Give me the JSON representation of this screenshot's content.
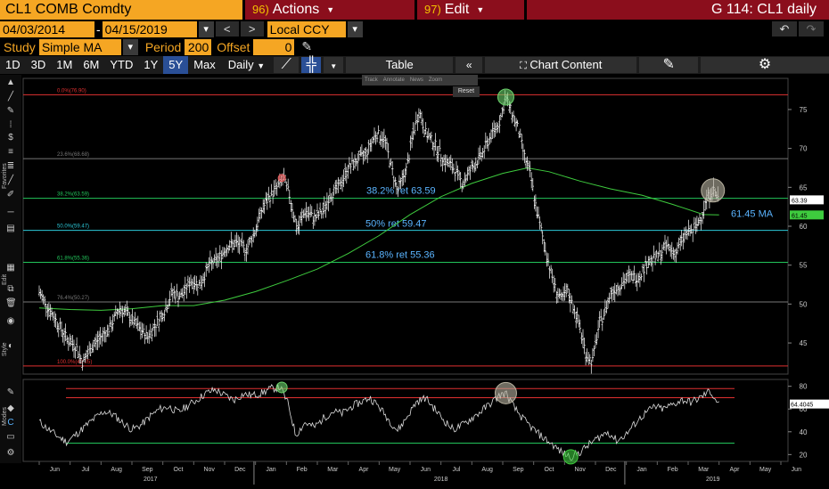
{
  "header": {
    "ticker": "CL1 COMB Comdty",
    "actions": {
      "num": "96)",
      "label": "Actions"
    },
    "edit": {
      "num": "97)",
      "label": "Edit"
    },
    "window_title": "G 114: CL1 daily"
  },
  "range": {
    "start": "04/03/2014",
    "dash": "-",
    "end": "04/15/2019",
    "currency": "Local CCY",
    "prev": "<",
    "next": ">"
  },
  "study": {
    "label": "Study",
    "value": "Simple MA",
    "period_label": "Period",
    "period": "200",
    "offset_label": "Offset",
    "offset": "0"
  },
  "toolbar": {
    "periods": [
      "1D",
      "3D",
      "1M",
      "6M",
      "YTD",
      "1Y",
      "5Y",
      "Max"
    ],
    "selected_period": "5Y",
    "frequency": "Daily",
    "table": "Table",
    "chart_content": "Chart Content"
  },
  "floating_tools": {
    "track": "Track",
    "annotate": "Annotate",
    "news": "News",
    "zoom": "Zoom",
    "reset": "Reset"
  },
  "strip_labels": {
    "favorites": "Favorites",
    "edit": "Edit",
    "style": "Style",
    "modes": "Modes"
  },
  "colors": {
    "orange": "#f5a623",
    "maroon": "#8b0e1c",
    "selected": "#2a4f96",
    "price": "#ffffff",
    "ma": "#3ecb3e",
    "fib_top": "#e03030",
    "fib_mid": "#22c45a",
    "fib_grey": "#777777",
    "fib_cyan": "#2bc8d8",
    "annotation": "#5ab4ff",
    "osc_red": "#e03030",
    "osc_green": "#22c45a"
  },
  "chart_data": {
    "type": "line",
    "x_months": [
      "Jun",
      "Jul",
      "Aug",
      "Sep",
      "Oct",
      "Nov",
      "Dec",
      "Jan",
      "Feb",
      "Mar",
      "Apr",
      "May",
      "Jun",
      "Jul",
      "Aug",
      "Sep",
      "Oct",
      "Nov",
      "Dec",
      "Jan",
      "Feb",
      "Mar",
      "Apr",
      "May",
      "Jun"
    ],
    "x_years": [
      "2017",
      "2018",
      "2019"
    ],
    "ylim": [
      41,
      79
    ],
    "y_ticks": [
      45,
      50,
      55,
      60,
      65,
      70,
      75
    ],
    "oscillator_ticks": [
      20,
      40,
      60,
      80
    ],
    "oscillator_ylim": [
      14,
      86
    ],
    "current_price": "63.39",
    "current_ma": "61.45",
    "current_osc": "64.4045",
    "fib_levels": [
      {
        "label": "0.0%(76.90)",
        "value": 76.9,
        "color": "#e03030"
      },
      {
        "label": "23.6%(68.68)",
        "value": 68.68,
        "color": "#777777"
      },
      {
        "label": "38.2%(63.59)",
        "value": 63.59,
        "color": "#22c45a"
      },
      {
        "label": "50.0%(59.47)",
        "value": 59.47,
        "color": "#2bc8d8"
      },
      {
        "label": "61.8%(55.36)",
        "value": 55.36,
        "color": "#22c45a"
      },
      {
        "label": "76.4%(50.27)",
        "value": 50.27,
        "color": "#777777"
      },
      {
        "label": "100.0%(42.05)",
        "value": 42.05,
        "color": "#e03030"
      }
    ],
    "annotations": [
      {
        "text": "38.2% ret 63.59"
      },
      {
        "text": "50% ret 59.47"
      },
      {
        "text": "61.8% ret 55.36"
      },
      {
        "text": "61.45 MA"
      }
    ],
    "price_series": {
      "name": "",
      "values": [
        [
          0,
          51.5
        ],
        [
          0.3,
          49.5
        ],
        [
          0.6,
          47.5
        ],
        [
          0.9,
          45.5
        ],
        [
          1.2,
          44.5
        ],
        [
          1.4,
          42.5
        ],
        [
          1.7,
          44.5
        ],
        [
          2.0,
          45.8
        ],
        [
          2.3,
          47.0
        ],
        [
          2.6,
          49.5
        ],
        [
          2.9,
          48.5
        ],
        [
          3.2,
          47.0
        ],
        [
          3.5,
          45.8
        ],
        [
          3.8,
          47.5
        ],
        [
          4.1,
          49.5
        ],
        [
          4.3,
          51.5
        ],
        [
          4.6,
          51.0
        ],
        [
          4.9,
          53.0
        ],
        [
          5.2,
          52.5
        ],
        [
          5.5,
          55.0
        ],
        [
          5.8,
          55.8
        ],
        [
          6.1,
          57.5
        ],
        [
          6.4,
          57.8
        ],
        [
          6.7,
          57.0
        ],
        [
          7.0,
          59.5
        ],
        [
          7.2,
          62.0
        ],
        [
          7.4,
          63.5
        ],
        [
          7.7,
          65.0
        ],
        [
          7.9,
          66.2
        ],
        [
          8.1,
          64.0
        ],
        [
          8.35,
          59.5
        ],
        [
          8.6,
          62.0
        ],
        [
          8.9,
          61.0
        ],
        [
          9.2,
          62.0
        ],
        [
          9.4,
          64.0
        ],
        [
          9.7,
          65.0
        ],
        [
          10.0,
          67.5
        ],
        [
          10.3,
          68.5
        ],
        [
          10.6,
          69.5
        ],
        [
          10.9,
          72.0
        ],
        [
          11.2,
          71.0
        ],
        [
          11.4,
          67.5
        ],
        [
          11.6,
          64.5
        ],
        [
          11.9,
          67.5
        ],
        [
          12.1,
          72.0
        ],
        [
          12.3,
          74.8
        ],
        [
          12.5,
          72.0
        ],
        [
          12.8,
          70.5
        ],
        [
          13.1,
          68.5
        ],
        [
          13.4,
          67.5
        ],
        [
          13.7,
          65.5
        ],
        [
          14.0,
          67.5
        ],
        [
          14.3,
          69.0
        ],
        [
          14.6,
          71.5
        ],
        [
          14.9,
          73.5
        ],
        [
          15.1,
          76.5
        ],
        [
          15.3,
          74.5
        ],
        [
          15.5,
          72.5
        ],
        [
          15.7,
          69.0
        ],
        [
          15.9,
          66.5
        ],
        [
          16.1,
          62.0
        ],
        [
          16.3,
          58.5
        ],
        [
          16.5,
          55.0
        ],
        [
          16.7,
          52.0
        ],
        [
          16.9,
          50.5
        ],
        [
          17.1,
          51.5
        ],
        [
          17.3,
          49.5
        ],
        [
          17.5,
          47.0
        ],
        [
          17.7,
          43.5
        ],
        [
          17.9,
          42.5
        ],
        [
          18.1,
          47.0
        ],
        [
          18.3,
          49.0
        ],
        [
          18.5,
          51.5
        ],
        [
          18.8,
          52.5
        ],
        [
          19.1,
          53.5
        ],
        [
          19.4,
          53.5
        ],
        [
          19.7,
          55.5
        ],
        [
          20.0,
          56.0
        ],
        [
          20.3,
          57.5
        ],
        [
          20.6,
          56.5
        ],
        [
          20.9,
          59.0
        ],
        [
          21.2,
          59.5
        ],
        [
          21.4,
          61.0
        ],
        [
          21.6,
          63.5
        ],
        [
          21.8,
          64.8
        ],
        [
          22.0,
          63.4
        ]
      ]
    },
    "ma_series": {
      "name": "",
      "values": [
        [
          0,
          49.5
        ],
        [
          1,
          49.3
        ],
        [
          2,
          49.2
        ],
        [
          3,
          49.4
        ],
        [
          4,
          49.8
        ],
        [
          5,
          49.8
        ],
        [
          6,
          50.5
        ],
        [
          7,
          51.6
        ],
        [
          8,
          53.0
        ],
        [
          9,
          54.5
        ],
        [
          10,
          56.5
        ],
        [
          11,
          58.8
        ],
        [
          12,
          61.5
        ],
        [
          13,
          63.8
        ],
        [
          14,
          65.5
        ],
        [
          15,
          66.8
        ],
        [
          15.8,
          67.5
        ],
        [
          16.5,
          67.0
        ],
        [
          17.5,
          65.8
        ],
        [
          18.5,
          64.8
        ],
        [
          19.5,
          64.0
        ],
        [
          20.5,
          62.8
        ],
        [
          21.5,
          61.5
        ],
        [
          22.0,
          61.45
        ]
      ]
    },
    "osc_series": {
      "name": "",
      "values": [
        [
          0,
          49
        ],
        [
          0.3,
          42
        ],
        [
          0.6,
          36
        ],
        [
          0.9,
          31
        ],
        [
          1.2,
          38
        ],
        [
          1.5,
          45
        ],
        [
          1.8,
          52
        ],
        [
          2.1,
          58
        ],
        [
          2.4,
          55
        ],
        [
          2.7,
          48
        ],
        [
          3.0,
          42
        ],
        [
          3.3,
          46
        ],
        [
          3.6,
          54
        ],
        [
          3.9,
          60
        ],
        [
          4.2,
          62
        ],
        [
          4.5,
          57
        ],
        [
          4.8,
          63
        ],
        [
          5.1,
          68
        ],
        [
          5.4,
          74
        ],
        [
          5.7,
          77
        ],
        [
          6.0,
          72
        ],
        [
          6.3,
          68
        ],
        [
          6.6,
          73
        ],
        [
          6.9,
          72
        ],
        [
          7.2,
          74
        ],
        [
          7.5,
          78
        ],
        [
          7.8,
          79
        ],
        [
          8.05,
          65
        ],
        [
          8.3,
          37
        ],
        [
          8.6,
          48
        ],
        [
          8.9,
          44
        ],
        [
          9.2,
          52
        ],
        [
          9.5,
          58
        ],
        [
          9.8,
          56
        ],
        [
          10.1,
          62
        ],
        [
          10.4,
          66
        ],
        [
          10.7,
          70
        ],
        [
          11.0,
          62
        ],
        [
          11.3,
          51
        ],
        [
          11.6,
          41
        ],
        [
          11.9,
          53
        ],
        [
          12.2,
          66
        ],
        [
          12.5,
          70
        ],
        [
          12.8,
          60
        ],
        [
          13.1,
          50
        ],
        [
          13.4,
          42
        ],
        [
          13.7,
          46
        ],
        [
          14.0,
          52
        ],
        [
          14.3,
          58
        ],
        [
          14.6,
          65
        ],
        [
          14.9,
          72
        ],
        [
          15.1,
          74
        ],
        [
          15.4,
          60
        ],
        [
          15.7,
          50
        ],
        [
          16.0,
          42
        ],
        [
          16.3,
          35
        ],
        [
          16.6,
          29
        ],
        [
          16.9,
          22
        ],
        [
          17.2,
          18
        ],
        [
          17.5,
          22
        ],
        [
          17.8,
          29
        ],
        [
          18.1,
          35
        ],
        [
          18.4,
          40
        ],
        [
          18.7,
          32
        ],
        [
          19.0,
          38
        ],
        [
          19.3,
          48
        ],
        [
          19.6,
          56
        ],
        [
          19.9,
          62
        ],
        [
          20.2,
          60
        ],
        [
          20.5,
          64
        ],
        [
          20.8,
          68
        ],
        [
          21.1,
          66
        ],
        [
          21.4,
          70
        ],
        [
          21.7,
          76
        ],
        [
          22.0,
          64
        ]
      ]
    },
    "osc_levels": [
      {
        "value": 78,
        "color": "#e03030"
      },
      {
        "value": 70,
        "color": "#e03030"
      },
      {
        "value": 30,
        "color": "#22c45a"
      }
    ],
    "markers": [
      {
        "x": 7.85,
        "y": 66.2,
        "color": "#e85a5a",
        "r": 4
      },
      {
        "x": 15.1,
        "y": 76.6,
        "color": "#6cd46c",
        "r": 9
      },
      {
        "x": 21.8,
        "y": 64.6,
        "color": "#b8b2a0",
        "r": 13
      }
    ],
    "osc_markers": [
      {
        "x": 7.85,
        "y": 79,
        "color": "#6cd46c",
        "r": 6
      },
      {
        "x": 15.1,
        "y": 74,
        "color": "#b8b2a0",
        "r": 12
      },
      {
        "x": 17.2,
        "y": 18,
        "color": "#3ecb3e",
        "r": 8
      }
    ]
  }
}
